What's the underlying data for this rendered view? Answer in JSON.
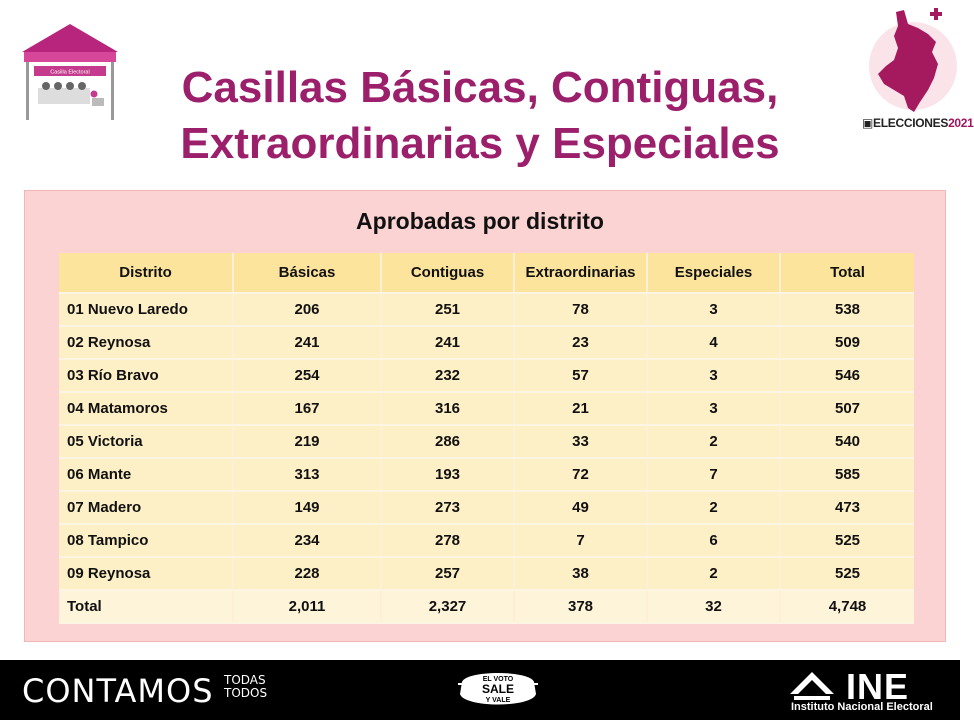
{
  "header": {
    "title_line1": "Casillas Básicas, Contiguas,",
    "title_line2": "Extraordinarias y Especiales",
    "booth_sign": "Casilla Electoral",
    "elections_label": "ELECCIONES",
    "elections_year": "2021"
  },
  "panel": {
    "title": "Aprobadas por distrito"
  },
  "table": {
    "columns": [
      "Distrito",
      "Básicas",
      "Contiguas",
      "Extraordinarias",
      "Especiales",
      "Total"
    ],
    "rows": [
      [
        "01 Nuevo Laredo",
        "206",
        "251",
        "78",
        "3",
        "538"
      ],
      [
        "02 Reynosa",
        "241",
        "241",
        "23",
        "4",
        "509"
      ],
      [
        "03 Río Bravo",
        "254",
        "232",
        "57",
        "3",
        "546"
      ],
      [
        "04 Matamoros",
        "167",
        "316",
        "21",
        "3",
        "507"
      ],
      [
        "05 Victoria",
        "219",
        "286",
        "33",
        "2",
        "540"
      ],
      [
        "06 Mante",
        "313",
        "193",
        "72",
        "7",
        "585"
      ],
      [
        "07 Madero",
        "149",
        "273",
        "49",
        "2",
        "473"
      ],
      [
        "08 Tampico",
        "234",
        "278",
        "7",
        "6",
        "525"
      ],
      [
        "09 Reynosa",
        "228",
        "257",
        "38",
        "2",
        "525"
      ]
    ],
    "total": [
      "Total",
      "2,011",
      "2,327",
      "378",
      "32",
      "4,748"
    ]
  },
  "footer": {
    "contamos": "CONTAMOS",
    "todas": "TODAS",
    "todos": "TODOS",
    "voto_line1": "EL VOTO",
    "voto_line2": "SALE",
    "voto_line3": "Y VALE",
    "ine": "INE",
    "ine_sub": "Instituto Nacional Electoral"
  },
  "colors": {
    "title": "#9b1f6a",
    "panel_bg": "#fcd3d3",
    "header_row": "#fce49d",
    "body_row": "#fdefc6",
    "footer_bg": "#000000"
  }
}
